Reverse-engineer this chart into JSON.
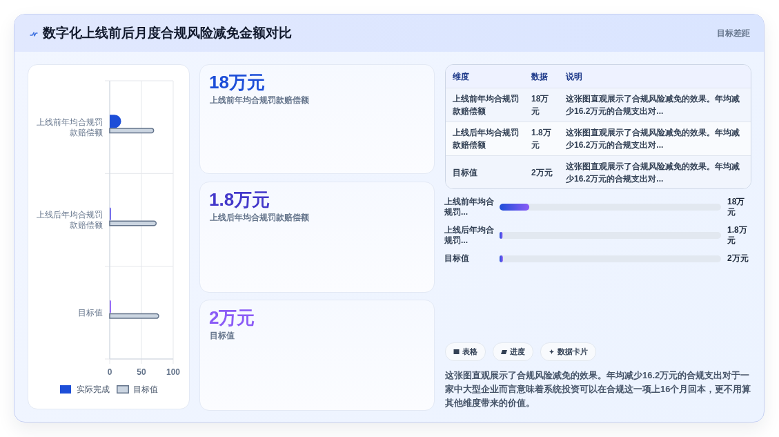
{
  "chart_data": [
    {
      "type": "other",
      "title": "数字化上线前后月度合规风险减免金额对比",
      "subtitle": "目标差距"
    },
    {
      "type": "bar",
      "orientation": "horizontal",
      "categories": [
        "上线前年均合规罚款赔偿额",
        "上线后年均合规罚款赔偿额",
        "目标值"
      ],
      "series": [
        {
          "name": "实际完成",
          "color": "#1d4ed8",
          "colors": [
            "#1d4ed8",
            "#4f46e5",
            "#8b5cf6"
          ],
          "values": [
            18,
            1.8,
            2
          ]
        },
        {
          "name": "目标值",
          "color": "#cbd5e1",
          "values": [
            70,
            74,
            78
          ]
        }
      ],
      "xlim": [
        0,
        100
      ],
      "xticks": [
        0,
        50,
        100
      ],
      "grid": true,
      "legend": "bottom"
    },
    {
      "type": "other",
      "annotations": [
        "18万元",
        "上线前年均合规罚款赔偿额",
        "1.8万元",
        "上线后年均合规罚款赔偿额",
        "2万元",
        "目标值"
      ],
      "colors": [
        "#1d4ed8",
        "#4338ca",
        "#8b5cf6"
      ]
    },
    {
      "type": "other",
      "annotations": [
        "维度",
        "数据",
        "说明",
        "上线前年均合规罚款赔偿额",
        "18万元",
        "这张图直观展示了合规风险减免的效果。年均减少16.2万元的合规支出对...",
        "上线后年均合规罚款赔偿额",
        "1.8万元",
        "这张图直观展示了合规风险减免的效果。年均减少16.2万元的合规支出对...",
        "目标值",
        "2万元",
        "这张图直观展示了合规风险减免的效果。年均减少16.2万元的合规支出对..."
      ]
    },
    {
      "type": "bar",
      "orientation": "horizontal",
      "categories": [
        "上线前年均合规罚...",
        "上线后年均合规罚...",
        "目标值"
      ],
      "values": [
        18,
        1.8,
        2
      ],
      "value_labels": [
        "18万元",
        "1.8万元",
        "2万元"
      ],
      "color": "#1d4ed8",
      "xlim": [
        0,
        134
      ]
    },
    {
      "type": "other",
      "annotations": [
        "表格",
        "进度",
        "数据卡片",
        "这张图直观展示了合规风险减免的效果。年均减少16.2万元的合规支出对于一家中大型企业而言意味着系统投资可以在合规这一项上16个月回本，更不用算其他维度带来的价值。"
      ]
    }
  ]
}
